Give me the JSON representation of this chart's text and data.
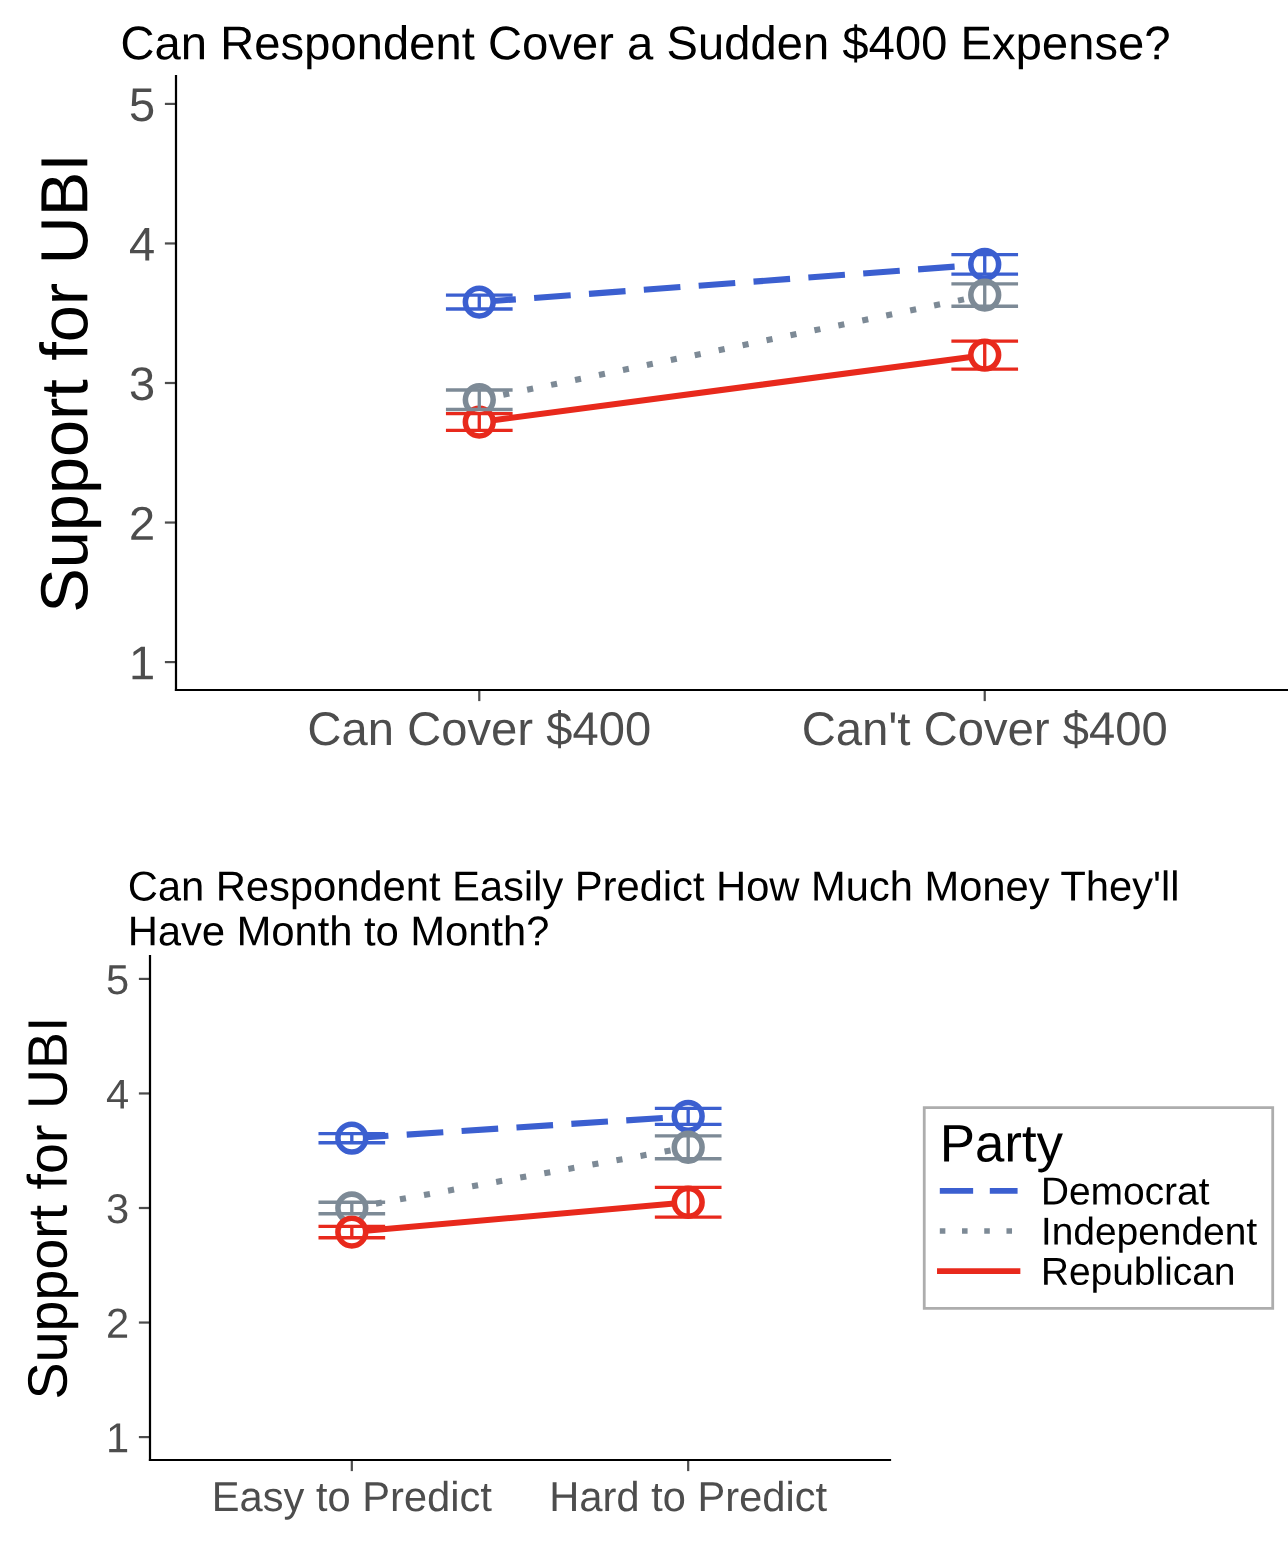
{
  "chart_data": [
    {
      "type": "line",
      "title": "Can Respondent Cover a Sudden $400 Expense?",
      "ylabel": "Support for UBI",
      "categories": [
        "Can Cover $400",
        "Can't Cover $400"
      ],
      "ylim": [
        0.8,
        5.2
      ],
      "yticks": [
        1,
        2,
        3,
        4,
        5
      ],
      "grid": false,
      "legend": false,
      "marker": "circle",
      "series": [
        {
          "color": "#3b5fd0",
          "line_style": "dashed",
          "values": [
            3.58,
            3.85
          ],
          "errors": [
            0.05,
            0.07
          ]
        },
        {
          "color": "#7d8a96",
          "line_style": "dotted",
          "values": [
            2.88,
            3.63
          ],
          "errors": [
            0.07,
            0.08
          ]
        },
        {
          "color": "#e8291c",
          "line_style": "solid",
          "values": [
            2.72,
            3.2
          ],
          "errors": [
            0.06,
            0.1
          ]
        }
      ]
    },
    {
      "type": "line",
      "title": "Can Respondent Easily Predict How Much Money They'll Have Month to Month?",
      "ylabel": "Support for UBI",
      "legend_title": "Party",
      "categories": [
        "Easy to Predict",
        "Hard to Predict"
      ],
      "ylim": [
        0.8,
        5.2
      ],
      "yticks": [
        1,
        2,
        3,
        4,
        5
      ],
      "grid": false,
      "legend": "right",
      "marker": "circle",
      "series": [
        {
          "name": "Democrat",
          "color": "#3b5fd0",
          "line_style": "dashed",
          "values": [
            3.61,
            3.8
          ],
          "errors": [
            0.04,
            0.07
          ]
        },
        {
          "name": "Independent",
          "color": "#7d8a96",
          "line_style": "dotted",
          "values": [
            3.0,
            3.53
          ],
          "errors": [
            0.05,
            0.1
          ]
        },
        {
          "name": "Republican",
          "color": "#e8291c",
          "line_style": "solid",
          "values": [
            2.79,
            3.05
          ],
          "errors": [
            0.05,
            0.13
          ]
        }
      ]
    }
  ]
}
